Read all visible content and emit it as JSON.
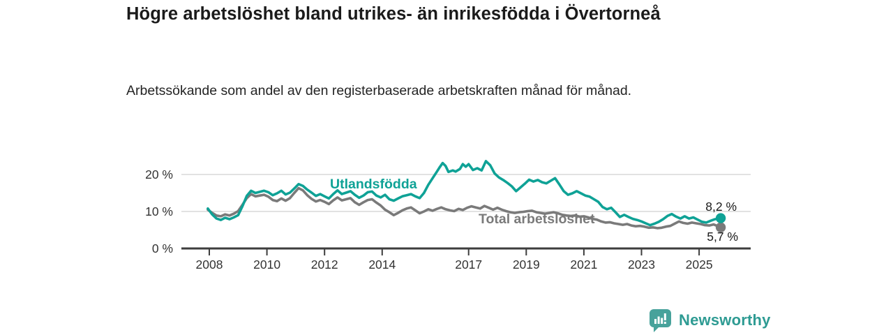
{
  "header": {
    "title": "Högre arbetslöshet bland utrikes- än inrikesfödda i Övertorneå",
    "subtitle": "Arbetssökande som andel av den registerbaserade arbetskraften månad för månad."
  },
  "chart_data": {
    "type": "line",
    "unit": "%",
    "grid": "horizontal",
    "legend_position": "inline-labels",
    "xlim": [
      2007.9,
      2026.4
    ],
    "ylim": [
      0,
      25
    ],
    "x_ticks": [
      2008,
      2010,
      2012,
      2014,
      2017,
      2019,
      2021,
      2023,
      2025
    ],
    "y_ticks": [
      {
        "value": 0,
        "label": "0 %"
      },
      {
        "value": 10,
        "label": "10 %"
      },
      {
        "value": 20,
        "label": "20 %"
      }
    ],
    "series": [
      {
        "name": "Total arbetslöshet",
        "color": "#7a7a7a",
        "end_value": 5.7,
        "end_label": "5,7 %",
        "points": [
          [
            2007.95,
            10.5
          ],
          [
            2008.1,
            9.6
          ],
          [
            2008.25,
            8.9
          ],
          [
            2008.4,
            8.7
          ],
          [
            2008.55,
            9.2
          ],
          [
            2008.7,
            8.9
          ],
          [
            2008.85,
            9.4
          ],
          [
            2009.0,
            10.1
          ],
          [
            2009.15,
            11.8
          ],
          [
            2009.3,
            13.6
          ],
          [
            2009.45,
            14.7
          ],
          [
            2009.6,
            14.1
          ],
          [
            2009.75,
            14.3
          ],
          [
            2009.9,
            14.5
          ],
          [
            2010.05,
            14.0
          ],
          [
            2010.2,
            13.1
          ],
          [
            2010.35,
            12.8
          ],
          [
            2010.5,
            13.5
          ],
          [
            2010.65,
            12.9
          ],
          [
            2010.8,
            13.6
          ],
          [
            2010.95,
            15.0
          ],
          [
            2011.1,
            16.3
          ],
          [
            2011.25,
            15.7
          ],
          [
            2011.4,
            14.4
          ],
          [
            2011.55,
            13.4
          ],
          [
            2011.7,
            12.7
          ],
          [
            2011.85,
            13.1
          ],
          [
            2012.0,
            12.6
          ],
          [
            2012.15,
            12.0
          ],
          [
            2012.3,
            13.0
          ],
          [
            2012.45,
            13.8
          ],
          [
            2012.6,
            13.0
          ],
          [
            2012.75,
            13.3
          ],
          [
            2012.9,
            13.6
          ],
          [
            2013.05,
            12.5
          ],
          [
            2013.2,
            11.8
          ],
          [
            2013.35,
            12.5
          ],
          [
            2013.5,
            13.1
          ],
          [
            2013.65,
            13.3
          ],
          [
            2013.8,
            12.4
          ],
          [
            2013.95,
            11.6
          ],
          [
            2014.1,
            10.5
          ],
          [
            2014.25,
            9.8
          ],
          [
            2014.4,
            9.0
          ],
          [
            2014.55,
            9.6
          ],
          [
            2014.7,
            10.3
          ],
          [
            2014.85,
            10.8
          ],
          [
            2015.0,
            11.1
          ],
          [
            2015.15,
            10.3
          ],
          [
            2015.3,
            9.5
          ],
          [
            2015.45,
            10.0
          ],
          [
            2015.6,
            10.6
          ],
          [
            2015.75,
            10.2
          ],
          [
            2015.9,
            10.7
          ],
          [
            2016.05,
            11.1
          ],
          [
            2016.2,
            10.6
          ],
          [
            2016.35,
            10.3
          ],
          [
            2016.5,
            10.1
          ],
          [
            2016.65,
            10.7
          ],
          [
            2016.8,
            10.4
          ],
          [
            2016.95,
            11.0
          ],
          [
            2017.1,
            11.4
          ],
          [
            2017.25,
            11.1
          ],
          [
            2017.4,
            10.8
          ],
          [
            2017.55,
            11.5
          ],
          [
            2017.7,
            11.0
          ],
          [
            2017.85,
            10.5
          ],
          [
            2018.0,
            11.0
          ],
          [
            2018.15,
            10.5
          ],
          [
            2018.3,
            10.1
          ],
          [
            2018.45,
            9.8
          ],
          [
            2018.6,
            9.6
          ],
          [
            2018.75,
            9.8
          ],
          [
            2018.9,
            9.9
          ],
          [
            2019.05,
            10.1
          ],
          [
            2019.2,
            10.2
          ],
          [
            2019.35,
            9.8
          ],
          [
            2019.5,
            9.6
          ],
          [
            2019.65,
            9.4
          ],
          [
            2019.8,
            9.6
          ],
          [
            2019.95,
            9.8
          ],
          [
            2020.1,
            9.5
          ],
          [
            2020.25,
            9.1
          ],
          [
            2020.4,
            8.9
          ],
          [
            2020.55,
            8.8
          ],
          [
            2020.7,
            8.9
          ],
          [
            2020.85,
            8.6
          ],
          [
            2021.0,
            8.7
          ],
          [
            2021.15,
            8.4
          ],
          [
            2021.3,
            8.0
          ],
          [
            2021.45,
            7.8
          ],
          [
            2021.6,
            7.3
          ],
          [
            2021.75,
            7.0
          ],
          [
            2021.9,
            7.1
          ],
          [
            2022.05,
            6.8
          ],
          [
            2022.2,
            6.6
          ],
          [
            2022.35,
            6.4
          ],
          [
            2022.5,
            6.6
          ],
          [
            2022.65,
            6.2
          ],
          [
            2022.8,
            6.0
          ],
          [
            2022.95,
            6.1
          ],
          [
            2023.1,
            5.9
          ],
          [
            2023.25,
            5.6
          ],
          [
            2023.4,
            5.7
          ],
          [
            2023.55,
            5.5
          ],
          [
            2023.7,
            5.6
          ],
          [
            2023.85,
            5.9
          ],
          [
            2024.0,
            6.1
          ],
          [
            2024.15,
            6.7
          ],
          [
            2024.3,
            7.3
          ],
          [
            2024.45,
            6.9
          ],
          [
            2024.6,
            6.7
          ],
          [
            2024.75,
            7.0
          ],
          [
            2024.9,
            6.8
          ],
          [
            2025.05,
            6.6
          ],
          [
            2025.2,
            6.3
          ],
          [
            2025.35,
            6.2
          ],
          [
            2025.5,
            6.5
          ],
          [
            2025.75,
            5.7
          ]
        ]
      },
      {
        "name": "Utlandsfödda",
        "color": "#0fa296",
        "end_value": 8.2,
        "end_label": "8,2 %",
        "points": [
          [
            2007.95,
            10.8
          ],
          [
            2008.1,
            9.2
          ],
          [
            2008.25,
            8.1
          ],
          [
            2008.4,
            7.7
          ],
          [
            2008.55,
            8.3
          ],
          [
            2008.7,
            7.9
          ],
          [
            2008.85,
            8.4
          ],
          [
            2009.0,
            9.0
          ],
          [
            2009.15,
            11.4
          ],
          [
            2009.3,
            14.2
          ],
          [
            2009.45,
            15.6
          ],
          [
            2009.6,
            15.0
          ],
          [
            2009.75,
            15.3
          ],
          [
            2009.9,
            15.6
          ],
          [
            2010.05,
            15.2
          ],
          [
            2010.2,
            14.4
          ],
          [
            2010.35,
            14.9
          ],
          [
            2010.5,
            15.6
          ],
          [
            2010.65,
            14.6
          ],
          [
            2010.8,
            15.1
          ],
          [
            2010.95,
            16.2
          ],
          [
            2011.1,
            17.4
          ],
          [
            2011.25,
            16.9
          ],
          [
            2011.4,
            15.9
          ],
          [
            2011.55,
            15.1
          ],
          [
            2011.7,
            14.2
          ],
          [
            2011.85,
            14.7
          ],
          [
            2012.0,
            14.1
          ],
          [
            2012.15,
            13.5
          ],
          [
            2012.3,
            14.7
          ],
          [
            2012.45,
            15.7
          ],
          [
            2012.6,
            14.7
          ],
          [
            2012.75,
            15.1
          ],
          [
            2012.9,
            15.5
          ],
          [
            2013.05,
            14.5
          ],
          [
            2013.2,
            13.7
          ],
          [
            2013.35,
            14.3
          ],
          [
            2013.5,
            15.2
          ],
          [
            2013.65,
            15.4
          ],
          [
            2013.8,
            14.3
          ],
          [
            2013.95,
            13.8
          ],
          [
            2014.1,
            14.5
          ],
          [
            2014.25,
            13.3
          ],
          [
            2014.4,
            12.9
          ],
          [
            2014.55,
            13.5
          ],
          [
            2014.7,
            14.1
          ],
          [
            2014.85,
            14.4
          ],
          [
            2015.0,
            14.7
          ],
          [
            2015.15,
            14.1
          ],
          [
            2015.3,
            13.6
          ],
          [
            2015.45,
            15.0
          ],
          [
            2015.6,
            17.2
          ],
          [
            2015.75,
            19.0
          ],
          [
            2015.9,
            20.8
          ],
          [
            2016.0,
            22.0
          ],
          [
            2016.1,
            23.1
          ],
          [
            2016.2,
            22.3
          ],
          [
            2016.3,
            20.7
          ],
          [
            2016.45,
            21.1
          ],
          [
            2016.55,
            20.8
          ],
          [
            2016.7,
            21.5
          ],
          [
            2016.8,
            22.8
          ],
          [
            2016.9,
            22.1
          ],
          [
            2017.0,
            22.8
          ],
          [
            2017.15,
            21.2
          ],
          [
            2017.3,
            21.7
          ],
          [
            2017.45,
            21.1
          ],
          [
            2017.6,
            23.6
          ],
          [
            2017.75,
            22.5
          ],
          [
            2017.9,
            20.3
          ],
          [
            2018.05,
            19.2
          ],
          [
            2018.2,
            18.5
          ],
          [
            2018.35,
            17.7
          ],
          [
            2018.5,
            16.8
          ],
          [
            2018.65,
            15.5
          ],
          [
            2018.8,
            16.5
          ],
          [
            2018.95,
            17.5
          ],
          [
            2019.1,
            18.6
          ],
          [
            2019.25,
            18.1
          ],
          [
            2019.4,
            18.5
          ],
          [
            2019.55,
            17.9
          ],
          [
            2019.7,
            17.6
          ],
          [
            2019.85,
            18.3
          ],
          [
            2020.0,
            19.0
          ],
          [
            2020.15,
            17.3
          ],
          [
            2020.3,
            15.5
          ],
          [
            2020.45,
            14.5
          ],
          [
            2020.6,
            14.9
          ],
          [
            2020.75,
            15.5
          ],
          [
            2020.9,
            14.9
          ],
          [
            2021.05,
            14.3
          ],
          [
            2021.2,
            14.0
          ],
          [
            2021.35,
            13.3
          ],
          [
            2021.5,
            12.6
          ],
          [
            2021.65,
            11.2
          ],
          [
            2021.8,
            10.6
          ],
          [
            2021.95,
            11.0
          ],
          [
            2022.1,
            9.8
          ],
          [
            2022.25,
            8.5
          ],
          [
            2022.4,
            9.1
          ],
          [
            2022.55,
            8.5
          ],
          [
            2022.7,
            8.0
          ],
          [
            2022.85,
            7.7
          ],
          [
            2023.0,
            7.3
          ],
          [
            2023.15,
            6.8
          ],
          [
            2023.3,
            6.3
          ],
          [
            2023.45,
            6.7
          ],
          [
            2023.6,
            7.2
          ],
          [
            2023.75,
            7.9
          ],
          [
            2023.9,
            8.8
          ],
          [
            2024.05,
            9.3
          ],
          [
            2024.2,
            8.6
          ],
          [
            2024.35,
            8.1
          ],
          [
            2024.5,
            8.7
          ],
          [
            2024.65,
            8.1
          ],
          [
            2024.8,
            8.4
          ],
          [
            2024.95,
            7.8
          ],
          [
            2025.1,
            7.2
          ],
          [
            2025.25,
            7.0
          ],
          [
            2025.4,
            7.5
          ],
          [
            2025.55,
            7.9
          ],
          [
            2025.75,
            8.2
          ]
        ]
      }
    ]
  },
  "footer": {
    "brand": "Newsworthy"
  }
}
